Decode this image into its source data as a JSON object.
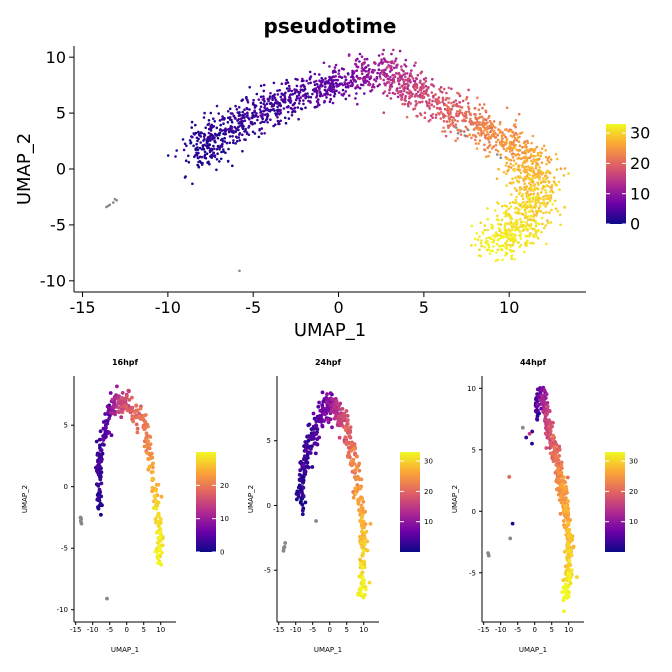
{
  "chart_data": [
    {
      "type": "scatter",
      "title": "pseudotime",
      "xlabel": "UMAP_1",
      "ylabel": "UMAP_2",
      "xlim": [
        -15.5,
        14.5
      ],
      "ylim": [
        -11,
        11
      ],
      "xticks": [
        -15,
        -10,
        -5,
        0,
        5,
        10
      ],
      "xtick_labels": [
        "-15",
        "-10",
        "-5",
        "0",
        "5",
        "10"
      ],
      "yticks": [
        -10,
        -5,
        0,
        5,
        10
      ],
      "ytick_labels": [
        "-10",
        "-5",
        "0",
        "5",
        "10"
      ],
      "grid": false,
      "legend": {
        "placement": "right",
        "type": "colorbar",
        "min": 0,
        "max": 33,
        "ticks": [
          0,
          10,
          20,
          30
        ],
        "tick_labels": [
          "0",
          "10",
          "20",
          "30"
        ]
      },
      "colormap": [
        "#0d0887",
        "#6a00a8",
        "#b12a90",
        "#e16462",
        "#fca636",
        "#f0f921"
      ],
      "na_color": "#888888",
      "trajectory": [
        {
          "x": -8.1,
          "y": 1.0,
          "t": 1
        },
        {
          "x": -7.6,
          "y": 2.6,
          "t": 2
        },
        {
          "x": -6.8,
          "y": 3.6,
          "t": 2
        },
        {
          "x": -5.5,
          "y": 4.3,
          "t": 3
        },
        {
          "x": -4.0,
          "y": 5.5,
          "t": 3
        },
        {
          "x": -2.5,
          "y": 6.5,
          "t": 4
        },
        {
          "x": -1.0,
          "y": 7.3,
          "t": 5
        },
        {
          "x": 0.5,
          "y": 7.8,
          "t": 7
        },
        {
          "x": 1.5,
          "y": 8.6,
          "t": 9
        },
        {
          "x": 2.5,
          "y": 8.8,
          "t": 12
        },
        {
          "x": 3.3,
          "y": 8.0,
          "t": 14
        },
        {
          "x": 4.5,
          "y": 7.0,
          "t": 16
        },
        {
          "x": 6.0,
          "y": 5.6,
          "t": 18
        },
        {
          "x": 7.5,
          "y": 4.3,
          "t": 21
        },
        {
          "x": 9.0,
          "y": 3.2,
          "t": 23
        },
        {
          "x": 10.3,
          "y": 1.8,
          "t": 25
        },
        {
          "x": 11.3,
          "y": 0.3,
          "t": 27
        },
        {
          "x": 11.6,
          "y": -1.5,
          "t": 29
        },
        {
          "x": 11.3,
          "y": -3.6,
          "t": 30
        },
        {
          "x": 10.6,
          "y": -5.2,
          "t": 31
        },
        {
          "x": 9.8,
          "y": -6.3,
          "t": 32
        },
        {
          "x": 8.7,
          "y": -7.0,
          "t": 33
        }
      ],
      "spread": 0.75,
      "na_points": [
        {
          "x": -13.6,
          "y": -3.4
        },
        {
          "x": -13.4,
          "y": -3.2
        },
        {
          "x": -13.2,
          "y": -3.0
        },
        {
          "x": -13.0,
          "y": -2.8
        },
        {
          "x": -13.5,
          "y": -3.3
        },
        {
          "x": -13.1,
          "y": -2.7
        },
        {
          "x": -5.8,
          "y": -9.1
        },
        {
          "x": 6.9,
          "y": 3.7
        },
        {
          "x": 7.2,
          "y": 3.4
        },
        {
          "x": 7.4,
          "y": 3.0
        },
        {
          "x": 7.0,
          "y": 3.2
        },
        {
          "x": 7.6,
          "y": 3.5
        },
        {
          "x": 9.3,
          "y": 1.3
        },
        {
          "x": 9.5,
          "y": 1.0
        }
      ]
    },
    {
      "type": "scatter",
      "title": "16hpf",
      "xlabel": "UMAP_1",
      "ylabel": "UMAP_2",
      "xlim": [
        -15.5,
        14.5
      ],
      "ylim": [
        -11,
        9
      ],
      "xticks": [
        -15,
        -10,
        -5,
        0,
        5,
        10
      ],
      "xtick_labels": [
        "-15",
        "-10",
        "-5",
        "0",
        "5",
        "10"
      ],
      "yticks": [
        -10,
        -5,
        0,
        5
      ],
      "ytick_labels": [
        "-10",
        "-5",
        "0",
        "5"
      ],
      "grid": false,
      "legend": {
        "placement": "right",
        "type": "colorbar",
        "min": 0,
        "max": 30,
        "ticks": [
          0,
          10,
          20
        ],
        "tick_labels": [
          "0",
          "10",
          "20"
        ]
      },
      "trajectory": [
        {
          "x": -8.0,
          "y": -2.0,
          "t": 1
        },
        {
          "x": -8.2,
          "y": 0.5,
          "t": 2
        },
        {
          "x": -7.8,
          "y": 2.8,
          "t": 3
        },
        {
          "x": -6.5,
          "y": 4.7,
          "t": 4
        },
        {
          "x": -5.0,
          "y": 6.3,
          "t": 6
        },
        {
          "x": -3.0,
          "y": 7.0,
          "t": 12
        },
        {
          "x": 0.0,
          "y": 6.6,
          "t": 16
        },
        {
          "x": 2.5,
          "y": 6.2,
          "t": 18
        },
        {
          "x": 5.0,
          "y": 5.2,
          "t": 19
        },
        {
          "x": 7.0,
          "y": 2.5,
          "t": 22
        },
        {
          "x": 8.5,
          "y": -0.5,
          "t": 26
        },
        {
          "x": 9.6,
          "y": -3.8,
          "t": 28
        },
        {
          "x": 9.3,
          "y": -6.0,
          "t": 29
        }
      ],
      "spread": 0.55,
      "na_points": [
        {
          "x": -13.5,
          "y": -2.8
        },
        {
          "x": -13.3,
          "y": -3.0
        },
        {
          "x": -13.6,
          "y": -2.5
        },
        {
          "x": -13.4,
          "y": -2.6
        },
        {
          "x": -5.8,
          "y": -9.1
        }
      ]
    },
    {
      "type": "scatter",
      "title": "24hpf",
      "xlabel": "UMAP_1",
      "ylabel": "UMAP_2",
      "xlim": [
        -15.5,
        14.5
      ],
      "ylim": [
        -9,
        10
      ],
      "xticks": [
        -15,
        -10,
        -5,
        0,
        5,
        10
      ],
      "xtick_labels": [
        "-15",
        "-10",
        "-5",
        "0",
        "5",
        "10"
      ],
      "yticks": [
        -5,
        0,
        5
      ],
      "ytick_labels": [
        "-5",
        "0",
        "5"
      ],
      "grid": false,
      "legend": {
        "placement": "right",
        "type": "colorbar",
        "min": 0,
        "max": 33,
        "ticks": [
          10,
          20,
          30
        ],
        "tick_labels": [
          "10",
          "20",
          "30"
        ]
      },
      "trajectory": [
        {
          "x": -8.5,
          "y": 0.0,
          "t": 1
        },
        {
          "x": -8.0,
          "y": 2.5,
          "t": 2
        },
        {
          "x": -6.5,
          "y": 4.3,
          "t": 3
        },
        {
          "x": -4.5,
          "y": 5.8,
          "t": 4
        },
        {
          "x": -2.5,
          "y": 7.0,
          "t": 5
        },
        {
          "x": 0.0,
          "y": 7.8,
          "t": 9
        },
        {
          "x": 2.0,
          "y": 7.5,
          "t": 14
        },
        {
          "x": 4.0,
          "y": 6.5,
          "t": 17
        },
        {
          "x": 6.0,
          "y": 4.8,
          "t": 20
        },
        {
          "x": 8.0,
          "y": 2.5,
          "t": 23
        },
        {
          "x": 9.3,
          "y": -0.5,
          "t": 26
        },
        {
          "x": 10.0,
          "y": -3.0,
          "t": 29
        },
        {
          "x": 9.8,
          "y": -5.5,
          "t": 31
        },
        {
          "x": 9.0,
          "y": -6.8,
          "t": 33
        }
      ],
      "spread": 0.6,
      "na_points": [
        {
          "x": -13.6,
          "y": -3.5
        },
        {
          "x": -13.3,
          "y": -3.2
        },
        {
          "x": -13.1,
          "y": -2.9
        },
        {
          "x": -13.5,
          "y": -3.3
        },
        {
          "x": -4.0,
          "y": -1.2
        }
      ]
    },
    {
      "type": "scatter",
      "title": "44hpf",
      "xlabel": "UMAP_1",
      "ylabel": "UMAP_2",
      "xlim": [
        -15.5,
        14.5
      ],
      "ylim": [
        -9,
        11
      ],
      "xticks": [
        -15,
        -10,
        -5,
        0,
        5,
        10
      ],
      "xtick_labels": [
        "-15",
        "-10",
        "-5",
        "0",
        "5",
        "10"
      ],
      "yticks": [
        -5,
        0,
        5,
        10
      ],
      "ytick_labels": [
        "-5",
        "0",
        "5",
        "10"
      ],
      "grid": false,
      "legend": {
        "placement": "right",
        "type": "colorbar",
        "min": 0,
        "max": 33,
        "ticks": [
          10,
          20,
          30
        ],
        "tick_labels": [
          "10",
          "20",
          "30"
        ]
      },
      "trajectory": [
        {
          "x": 0.5,
          "y": 8.0,
          "t": 2
        },
        {
          "x": 1.5,
          "y": 9.5,
          "t": 6
        },
        {
          "x": 3.0,
          "y": 8.5,
          "t": 13
        },
        {
          "x": 4.5,
          "y": 6.5,
          "t": 17
        },
        {
          "x": 6.0,
          "y": 4.8,
          "t": 20
        },
        {
          "x": 7.8,
          "y": 2.5,
          "t": 23
        },
        {
          "x": 9.3,
          "y": 0.0,
          "t": 26
        },
        {
          "x": 10.2,
          "y": -2.5,
          "t": 28
        },
        {
          "x": 10.0,
          "y": -5.0,
          "t": 30
        },
        {
          "x": 9.2,
          "y": -7.0,
          "t": 33
        }
      ],
      "spread": 0.55,
      "na_points": [
        {
          "x": -13.7,
          "y": -3.4
        },
        {
          "x": -13.5,
          "y": -3.6
        },
        {
          "x": -7.2,
          "y": -2.2
        },
        {
          "x": -3.5,
          "y": 6.8
        }
      ],
      "extra_points": [
        {
          "x": -7.5,
          "y": 2.8,
          "t": 20
        },
        {
          "x": -6.5,
          "y": -1.0,
          "t": 2
        },
        {
          "x": -2.5,
          "y": 6.0,
          "t": 3
        },
        {
          "x": -1.5,
          "y": 6.3,
          "t": 15
        },
        {
          "x": -0.8,
          "y": 5.5,
          "t": 2
        }
      ]
    }
  ]
}
